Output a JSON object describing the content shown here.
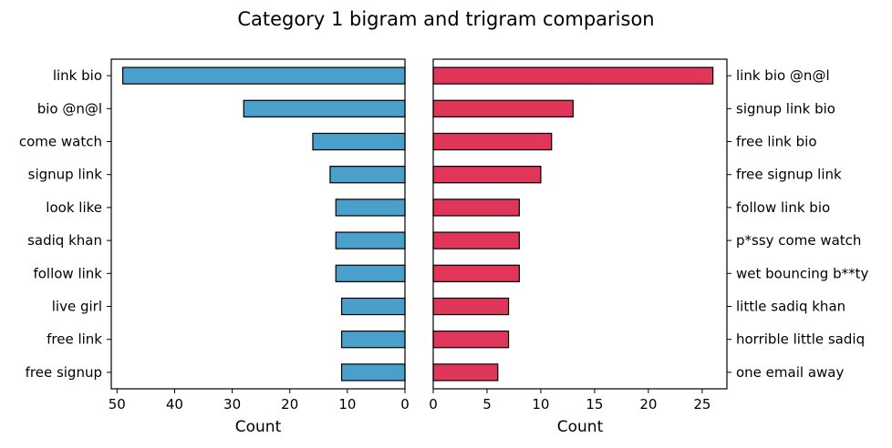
{
  "title": "Category 1 bigram and trigram comparison",
  "chart_data": [
    {
      "type": "bar",
      "orientation": "horizontal",
      "x_axis_inverted": true,
      "xlabel": "Count",
      "xlim": [
        51,
        0
      ],
      "xticks": [
        "50",
        "40",
        "30",
        "20",
        "10",
        "0"
      ],
      "bar_color": "#4aa0cb",
      "categories": [
        "link bio",
        "bio @n@l",
        "come watch",
        "signup link",
        "look like",
        "sadiq khan",
        "follow link",
        "live girl",
        "free link",
        "free signup"
      ],
      "values": [
        49,
        28,
        16,
        13,
        12,
        12,
        12,
        11,
        11,
        11
      ]
    },
    {
      "type": "bar",
      "orientation": "horizontal",
      "xlabel": "Count",
      "xlim": [
        0,
        27.3
      ],
      "xticks": [
        "0",
        "5",
        "10",
        "15",
        "20",
        "25"
      ],
      "bar_color": "#e0365a",
      "categories": [
        "link bio @n@l",
        "signup link bio",
        "free link bio",
        "free signup link",
        "follow link bio",
        "p*ssy come watch",
        "wet bouncing b**ty",
        "little sadiq khan",
        "horrible little sadiq",
        "one email away"
      ],
      "values": [
        26,
        13,
        11,
        10,
        8,
        8,
        8,
        7,
        7,
        6
      ]
    }
  ]
}
